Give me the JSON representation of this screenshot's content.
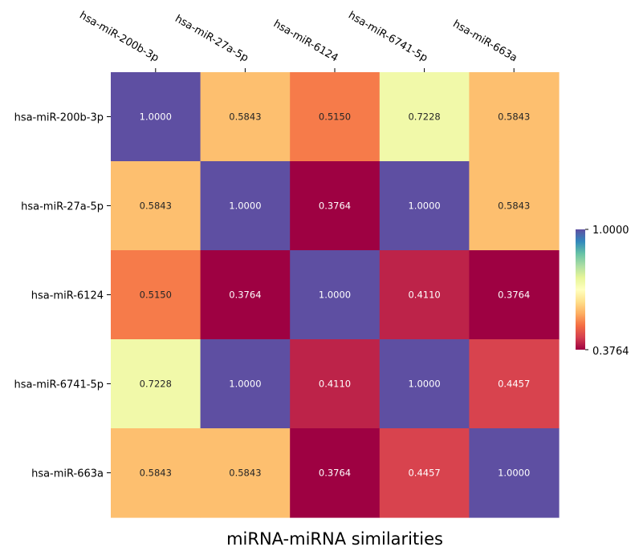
{
  "chart_data": {
    "type": "heatmap",
    "title": "miRNA-miRNA similarities",
    "x_labels": [
      "hsa-miR-200b-3p",
      "hsa-miR-27a-5p",
      "hsa-miR-6124",
      "hsa-miR-6741-5p",
      "hsa-miR-663a"
    ],
    "y_labels": [
      "hsa-miR-200b-3p",
      "hsa-miR-27a-5p",
      "hsa-miR-6124",
      "hsa-miR-6741-5p",
      "hsa-miR-663a"
    ],
    "values": [
      [
        1.0,
        0.5843,
        0.515,
        0.7228,
        0.5843
      ],
      [
        0.5843,
        1.0,
        0.3764,
        1.0,
        0.5843
      ],
      [
        0.515,
        0.3764,
        1.0,
        0.411,
        0.3764
      ],
      [
        0.7228,
        1.0,
        0.411,
        1.0,
        0.4457
      ],
      [
        0.5843,
        0.5843,
        0.3764,
        0.4457,
        1.0
      ]
    ],
    "cell_labels": [
      [
        "1.0000",
        "0.5843",
        "0.5150",
        "0.7228",
        "0.5843"
      ],
      [
        "0.5843",
        "1.0000",
        "0.3764",
        "1.0000",
        "0.5843"
      ],
      [
        "0.5150",
        "0.3764",
        "1.0000",
        "0.4110",
        "0.3764"
      ],
      [
        "0.7228",
        "1.0000",
        "0.4110",
        "1.0000",
        "0.4457"
      ],
      [
        "0.5843",
        "0.5843",
        "0.3764",
        "0.4457",
        "1.0000"
      ]
    ],
    "colorbar": {
      "min": 0.3764,
      "max": 1.0,
      "tick_labels": [
        "1.0000",
        "0.3764"
      ],
      "colormap": "Spectral"
    },
    "x_axis_position": "top",
    "grid": false,
    "annotation_colors": {
      "dark_cell_text": "#ffffff",
      "light_cell_text": "#262626"
    }
  }
}
